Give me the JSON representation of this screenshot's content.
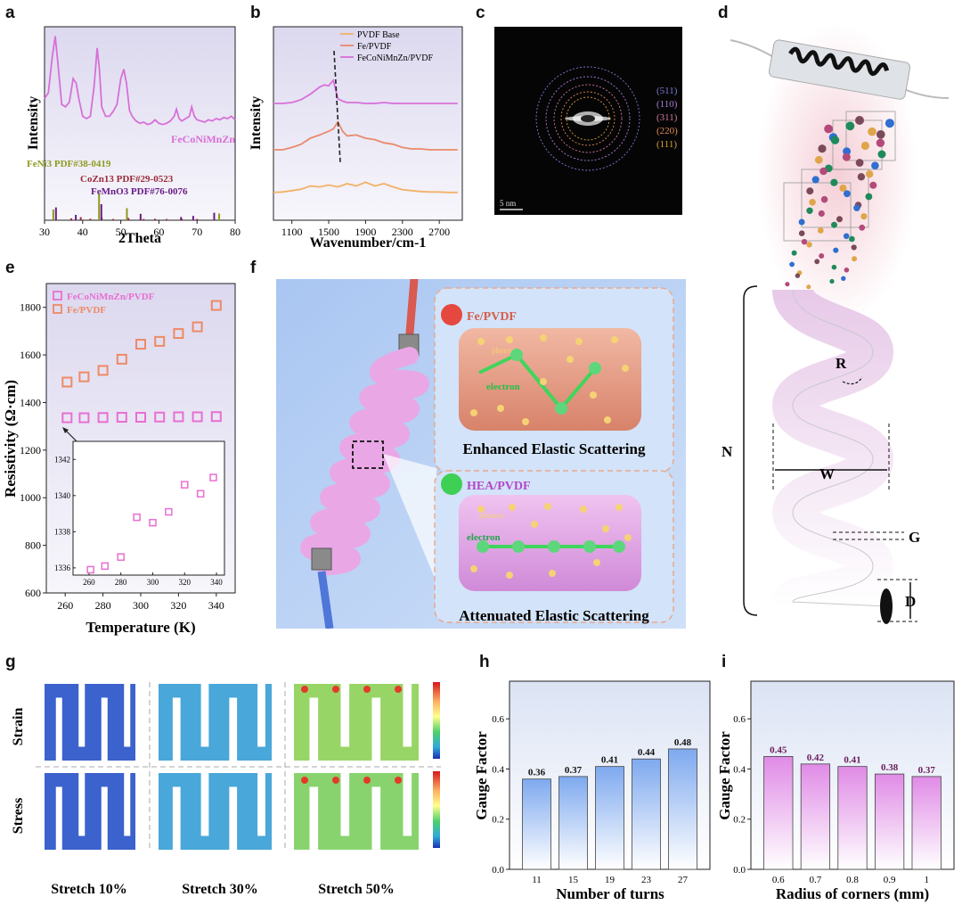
{
  "panel_labels": {
    "a": "a",
    "b": "b",
    "c": "c",
    "d": "d",
    "e": "e",
    "f": "f",
    "g": "g",
    "h": "h",
    "i": "i"
  },
  "colors": {
    "hea_pink": "#d86fd8",
    "fe_orange": "#e98a6c",
    "pvdf_base": "#f2b267",
    "feni3": "#8f9a1f",
    "cozn13": "#9b2a3a",
    "femno3": "#6a1c86",
    "bar_blue": "#8fb7f2",
    "bar_pink": "#e59be6",
    "resist_pink": "#e86fd2",
    "resist_orange": "#ee8a64"
  },
  "chart_data": [
    {
      "id": "a",
      "type": "line",
      "xlabel": "2Theta",
      "ylabel": "Intensity",
      "xlim": [
        30,
        80
      ],
      "xticks": [
        "30",
        "40",
        "50",
        "60",
        "70",
        "80"
      ],
      "series": [
        {
          "name": "FeCoNiMnZn",
          "x": [
            30,
            31,
            32,
            32.8,
            33.5,
            34.5,
            35.5,
            36.5,
            37.5,
            38.3,
            39,
            40,
            41,
            42,
            43,
            43.8,
            44.4,
            45,
            46,
            47,
            48,
            49,
            50,
            50.8,
            51.5,
            52.3,
            53,
            54,
            55,
            56,
            57,
            58,
            59,
            60,
            61,
            62,
            63,
            64,
            64.6,
            65.3,
            66,
            67,
            68,
            68.6,
            69.3,
            70,
            71,
            72,
            73,
            74,
            75,
            76,
            77,
            78,
            79,
            80
          ],
          "y": [
            0.45,
            0.5,
            0.8,
            0.98,
            0.75,
            0.4,
            0.38,
            0.42,
            0.62,
            0.58,
            0.45,
            0.3,
            0.28,
            0.3,
            0.55,
            0.88,
            0.7,
            0.38,
            0.3,
            0.3,
            0.34,
            0.4,
            0.62,
            0.7,
            0.58,
            0.35,
            0.3,
            0.26,
            0.24,
            0.25,
            0.23,
            0.24,
            0.27,
            0.24,
            0.23,
            0.24,
            0.26,
            0.3,
            0.36,
            0.28,
            0.26,
            0.28,
            0.3,
            0.38,
            0.3,
            0.27,
            0.26,
            0.25,
            0.27,
            0.26,
            0.28,
            0.27,
            0.29,
            0.28,
            0.3,
            0.27
          ]
        }
      ],
      "labels": [
        "FeCoNiMnZn",
        "FeNi3 PDF#38-0419",
        "CoZn13 PDF#29-0523",
        "FeMnO3 PDF#76-0076"
      ],
      "reference_sticks": {
        "FeNi3": {
          "x": [
            32.3,
            44.3,
            51.6,
            75.8
          ],
          "h": [
            0.4,
            1.0,
            0.45,
            0.25
          ]
        },
        "CoZn13": {
          "x": [
            37,
            39.5,
            42,
            45,
            48,
            52,
            56,
            59,
            62,
            66,
            70
          ],
          "h": [
            0.15,
            0.25,
            0.12,
            0.2,
            0.1,
            0.18,
            0.1,
            0.12,
            0.1,
            0.12,
            0.1
          ]
        },
        "FeMnO3": {
          "x": [
            33,
            38.2,
            44.9,
            55.2,
            65.8,
            69,
            74.5
          ],
          "h": [
            0.6,
            0.25,
            0.75,
            0.3,
            0.15,
            0.2,
            0.35
          ]
        }
      }
    },
    {
      "id": "b",
      "type": "line",
      "xlabel": "Wavenumber/cm-1",
      "ylabel": "Intensity",
      "xlim": [
        900,
        2950
      ],
      "xticks": [
        "1100",
        "1500",
        "1900",
        "2300",
        "2700"
      ],
      "legend": [
        "PVDF Base",
        "Fe/PVDF",
        "FeCoNiMnZn/PVDF"
      ],
      "series": [
        {
          "name": "PVDF Base",
          "x": [
            900,
            1000,
            1100,
            1200,
            1300,
            1400,
            1500,
            1600,
            1700,
            1800,
            1900,
            2000,
            2100,
            2200,
            2300,
            2400,
            2500,
            2600,
            2700,
            2800,
            2900
          ],
          "y": [
            0.08,
            0.09,
            0.12,
            0.15,
            0.22,
            0.2,
            0.24,
            0.2,
            0.27,
            0.22,
            0.3,
            0.22,
            0.27,
            0.2,
            0.14,
            0.12,
            0.1,
            0.09,
            0.09,
            0.08,
            0.08
          ]
        },
        {
          "name": "Fe/PVDF",
          "x": [
            900,
            1000,
            1100,
            1200,
            1300,
            1400,
            1500,
            1550,
            1600,
            1650,
            1700,
            1800,
            1900,
            2000,
            2100,
            2200,
            2300,
            2400,
            2500,
            2600,
            2700,
            2800,
            2900
          ],
          "y": [
            1.0,
            1.0,
            1.05,
            1.12,
            1.25,
            1.32,
            1.4,
            1.45,
            1.6,
            1.4,
            1.3,
            1.32,
            1.25,
            1.22,
            1.15,
            1.12,
            1.05,
            1.02,
            1.02,
            1.0,
            1.0,
            1.0,
            1.0
          ]
        },
        {
          "name": "FeCoNiMnZn/PVDF",
          "x": [
            900,
            1000,
            1100,
            1200,
            1300,
            1400,
            1450,
            1500,
            1550,
            1600,
            1650,
            1700,
            1800,
            1900,
            2000,
            2100,
            2200,
            2300,
            2400,
            2500,
            2600,
            2700,
            2800,
            2900
          ],
          "y": [
            2.0,
            2.0,
            2.02,
            2.08,
            2.2,
            2.35,
            2.4,
            2.38,
            2.5,
            2.1,
            2.05,
            2.02,
            2.02,
            2.0,
            2.0,
            2.02,
            2.0,
            2.0,
            2.0,
            2.0,
            2.0,
            2.0,
            2.0,
            2.0
          ]
        }
      ]
    },
    {
      "id": "e",
      "type": "scatter",
      "xlabel": "Temperature (K)",
      "ylabel": "Resistivity (Ω·cm)",
      "xlim": [
        250,
        350
      ],
      "ylim": [
        600,
        1900
      ],
      "xticks": [
        "260",
        "280",
        "300",
        "320",
        "340"
      ],
      "yticks": [
        "600",
        "800",
        "1000",
        "1200",
        "1400",
        "1600",
        "1800"
      ],
      "legend": [
        "FeCoNiMnZn/PVDF",
        "Fe/PVDF"
      ],
      "series": [
        {
          "name": "FeCoNiMnZn/PVDF",
          "x": [
            261,
            270,
            280,
            290,
            300,
            310,
            320,
            330,
            340
          ],
          "y": [
            1336,
            1336,
            1337,
            1338,
            1338,
            1339,
            1340,
            1340,
            1341
          ]
        },
        {
          "name": "Fe/PVDF",
          "x": [
            261,
            270,
            280,
            290,
            300,
            310,
            320,
            330,
            340
          ],
          "y": [
            1486,
            1508,
            1535,
            1582,
            1645,
            1657,
            1690,
            1718,
            1808
          ]
        }
      ],
      "inset": {
        "xlim": [
          250,
          345
        ],
        "ylim": [
          1335.6,
          1343
        ],
        "xticks": [
          "260",
          "280",
          "300",
          "320",
          "340"
        ],
        "yticks": [
          "1336",
          "1338",
          "1340",
          "1342"
        ],
        "x": [
          261,
          270,
          280,
          290,
          300,
          310,
          320,
          330,
          338
        ],
        "y": [
          1335.9,
          1336.1,
          1336.6,
          1338.8,
          1338.5,
          1339.1,
          1340.6,
          1340.1,
          1341.0
        ]
      }
    },
    {
      "id": "h",
      "type": "bar",
      "xlabel": "Number of turns",
      "ylabel": "Gauge Factor",
      "ylim": [
        0,
        0.75
      ],
      "yticks": [
        "0.0",
        "0.2",
        "0.4",
        "0.6"
      ],
      "categories": [
        "11",
        "15",
        "19",
        "23",
        "27"
      ],
      "values": [
        0.36,
        0.37,
        0.41,
        0.44,
        0.48
      ],
      "value_labels": [
        "0.36",
        "0.37",
        "0.41",
        "0.44",
        "0.48"
      ]
    },
    {
      "id": "i",
      "type": "bar",
      "xlabel": "Radius of corners (mm)",
      "ylabel": "Gauge Factor",
      "ylim": [
        0,
        0.75
      ],
      "yticks": [
        "0.0",
        "0.2",
        "0.4",
        "0.6"
      ],
      "categories": [
        "0.6",
        "0.7",
        "0.8",
        "0.9",
        "1"
      ],
      "values": [
        0.45,
        0.42,
        0.41,
        0.38,
        0.37
      ],
      "value_labels": [
        "0.45",
        "0.42",
        "0.41",
        "0.38",
        "0.37"
      ]
    }
  ],
  "panel_c": {
    "scale": "5 nm",
    "rings": [
      "(511)",
      "(110)",
      "(311)",
      "(220)",
      "(111)"
    ],
    "ring_colors": [
      "#7b7bd6",
      "#a77fd8",
      "#d07aa0",
      "#e08a55",
      "#d9a03a"
    ]
  },
  "panel_d": {
    "N": "N",
    "R": "R",
    "W": "W",
    "G": "G",
    "D": "D"
  },
  "panel_f": {
    "top_title": "Fe/PVDF",
    "top_caption": "Enhanced Elastic Scattering",
    "bottom_title": "HEA/PVDF",
    "bottom_caption": "Attenuated Elastic Scattering",
    "phonon": "phonon",
    "electron": "electron"
  },
  "panel_g": {
    "rows": [
      "Strain",
      "Stress"
    ],
    "columns": [
      "Stretch 10%",
      "Stretch 30%",
      "Stretch 50%"
    ]
  }
}
